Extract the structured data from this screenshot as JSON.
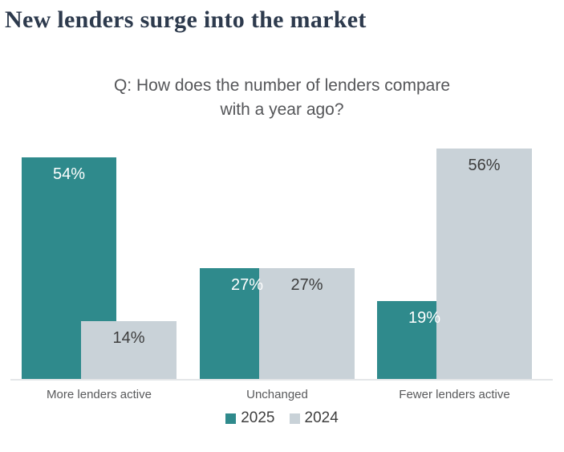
{
  "chart_data": {
    "type": "bar",
    "title": "New lenders surge into the market",
    "subtitle_lines": [
      "Q: How does the number of lenders compare",
      "with a year ago?"
    ],
    "categories": [
      "More lenders active",
      "Unchanged",
      "Fewer lenders active"
    ],
    "series": [
      {
        "name": "2025",
        "values": [
          54,
          27,
          19
        ],
        "color": "#2f8a8c",
        "label_color": "#ffffff"
      },
      {
        "name": "2024",
        "values": [
          14,
          27,
          56
        ],
        "color": "#c9d2d8",
        "label_color": "#3d3d3d"
      }
    ],
    "value_suffix": "%",
    "ylabel": "",
    "xlabel": "",
    "ylim": [
      0,
      58
    ],
    "grid": false,
    "legend_position": "bottom",
    "bar_style": "overlapping"
  }
}
